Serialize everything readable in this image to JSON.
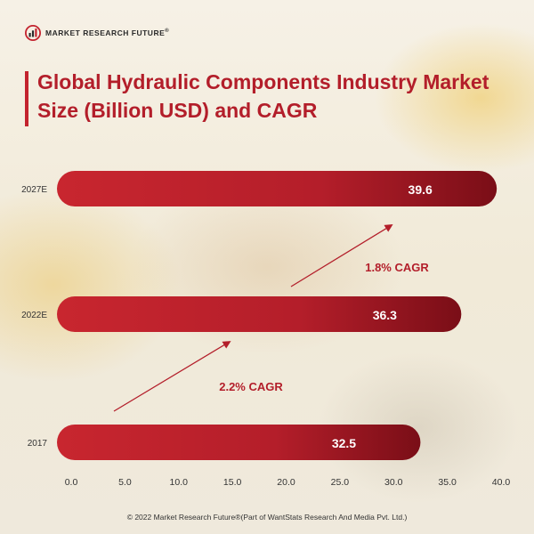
{
  "brand": {
    "name": "MARKET RESEARCH FUTURE",
    "mark": "®"
  },
  "title": "Global Hydraulic Components Industry Market Size (Billion USD) and CAGR",
  "chart_data": {
    "type": "bar",
    "orientation": "horizontal",
    "categories": [
      "2027E",
      "2022E",
      "2017"
    ],
    "values": [
      39.6,
      36.3,
      32.5
    ],
    "value_labels": [
      "39.6",
      "36.3",
      "32.5"
    ],
    "xlim": [
      0,
      40
    ],
    "x_ticks": [
      "0.0",
      "5.0",
      "10.0",
      "15.0",
      "20.0",
      "25.0",
      "30.0",
      "35.0",
      "40.0"
    ],
    "grid": false,
    "bar_color": "#b71f2b",
    "bar_dark_color": "#7e0f18",
    "annotations": [
      {
        "text": "2.2% CAGR",
        "from": "2017",
        "to": "2022E"
      },
      {
        "text": "1.8% CAGR",
        "from": "2022E",
        "to": "2027E"
      }
    ]
  },
  "footer": "© 2022 Market Research Future®(Part of WantStats Research And Media Pvt. Ltd.)",
  "colors": {
    "accent": "#c3232e",
    "text": "#333333"
  }
}
